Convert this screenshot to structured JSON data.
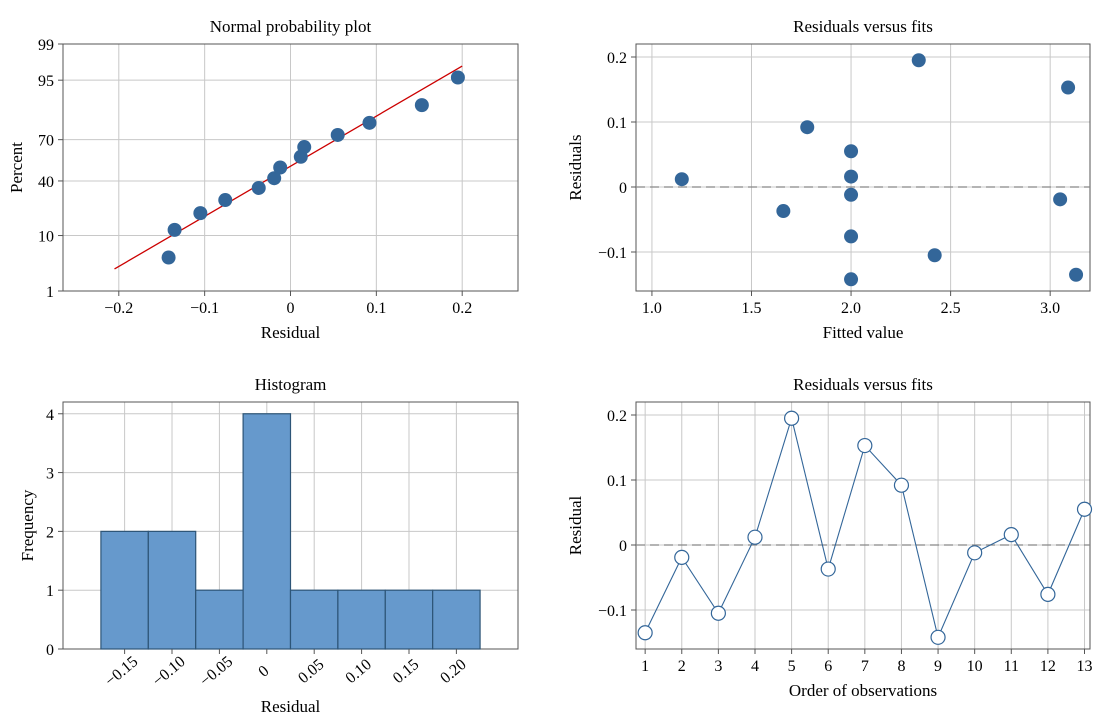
{
  "chart_data": [
    {
      "type": "scatter",
      "title": "Normal probability plot",
      "xlabel": "Residual",
      "ylabel": "Percent",
      "xlim": [
        -0.265,
        0.265
      ],
      "ylim": [
        1,
        99
      ],
      "y_scale": "normal-probability",
      "xticks": [
        -0.2,
        -0.1,
        0,
        0.1,
        0.2
      ],
      "xtick_labels": [
        "−0.2",
        "−0.1",
        "0",
        "0.1",
        "0.2"
      ],
      "yticks": [
        1,
        10,
        40,
        70,
        95,
        99
      ],
      "yticks_labels": [
        "1",
        "10",
        "40",
        "70",
        "95",
        "99"
      ],
      "grid": true,
      "points": [
        {
          "x": -0.142,
          "y": 4.5
        },
        {
          "x": -0.135,
          "y": 12
        },
        {
          "x": -0.105,
          "y": 19.5
        },
        {
          "x": -0.076,
          "y": 27
        },
        {
          "x": -0.037,
          "y": 35
        },
        {
          "x": -0.019,
          "y": 42
        },
        {
          "x": -0.012,
          "y": 50
        },
        {
          "x": 0.012,
          "y": 58
        },
        {
          "x": 0.016,
          "y": 65
        },
        {
          "x": 0.055,
          "y": 73
        },
        {
          "x": 0.092,
          "y": 80
        },
        {
          "x": 0.153,
          "y": 88
        },
        {
          "x": 0.195,
          "y": 95.5
        }
      ],
      "fit_line": {
        "x": [
          -0.205,
          0.2
        ],
        "y": [
          2.8,
          97.2
        ],
        "color": "#cc0000"
      },
      "point_color": "#336699"
    },
    {
      "type": "scatter",
      "title": "Residuals versus fits",
      "xlabel": "Fitted value",
      "ylabel": "Residuals",
      "xlim": [
        0.92,
        3.2
      ],
      "ylim": [
        -0.16,
        0.22
      ],
      "xticks": [
        1.0,
        1.5,
        2.0,
        2.5,
        3.0
      ],
      "xtick_labels": [
        "1.0",
        "1.5",
        "2.0",
        "2.5",
        "3.0"
      ],
      "yticks": [
        -0.1,
        0,
        0.1,
        0.2
      ],
      "ytick_labels": [
        "−0.1",
        "0",
        "0.1",
        "0.2"
      ],
      "grid": true,
      "reference_line": 0,
      "x": [
        1.15,
        1.66,
        1.78,
        2.0,
        2.0,
        2.0,
        2.0,
        2.0,
        2.34,
        2.42,
        3.05,
        3.09,
        3.13
      ],
      "y": [
        0.012,
        -0.037,
        0.092,
        0.055,
        0.016,
        -0.012,
        -0.076,
        -0.142,
        0.195,
        -0.105,
        -0.019,
        0.153,
        -0.135
      ],
      "point_color": "#336699"
    },
    {
      "type": "bar",
      "title": "Histogram",
      "xlabel": "Residual",
      "ylabel": "Frequency",
      "bin_width": 0.05,
      "categories": [
        "−0.15",
        "−0.10",
        "−0.05",
        "0",
        "0.05",
        "0.10",
        "0.15",
        "0.20"
      ],
      "bin_centers": [
        -0.15,
        -0.1,
        -0.05,
        0,
        0.05,
        0.1,
        0.15,
        0.2
      ],
      "values": [
        2,
        2,
        1,
        4,
        1,
        1,
        1,
        1
      ],
      "ylim": [
        0,
        4.2
      ],
      "yticks": [
        0,
        1,
        2,
        3,
        4
      ],
      "ytick_labels": [
        "0",
        "1",
        "2",
        "3",
        "4"
      ],
      "xlim": [
        -0.215,
        0.265
      ],
      "grid": true,
      "bar_color": "#6699cc",
      "edge_color": "#2d5577"
    },
    {
      "type": "line",
      "title": "Residuals versus fits",
      "xlabel": "Order of observations",
      "ylabel": "Residual",
      "xlim": [
        0.75,
        13.15
      ],
      "ylim": [
        -0.16,
        0.22
      ],
      "x": [
        1,
        2,
        3,
        4,
        5,
        6,
        7,
        8,
        9,
        10,
        11,
        12,
        13
      ],
      "xtick_labels": [
        "1",
        "2",
        "3",
        "4",
        "5",
        "6",
        "7",
        "8",
        "9",
        "10",
        "11",
        "12",
        "13"
      ],
      "y": [
        -0.135,
        -0.019,
        -0.105,
        0.012,
        0.195,
        -0.037,
        0.153,
        0.092,
        -0.142,
        -0.012,
        0.016,
        -0.076,
        0.055
      ],
      "yticks": [
        -0.1,
        0,
        0.1,
        0.2
      ],
      "ytick_labels": [
        "−0.1",
        "0",
        "0.1",
        "0.2"
      ],
      "grid": true,
      "reference_line": 0,
      "line_color": "#336699"
    }
  ]
}
